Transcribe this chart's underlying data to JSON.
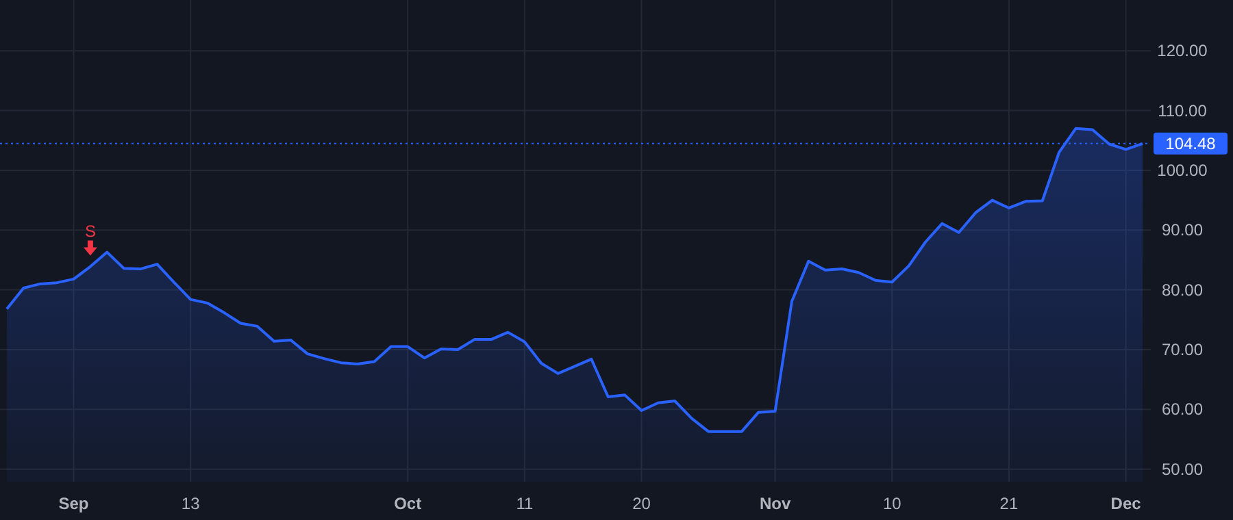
{
  "chart_data": {
    "type": "area",
    "categories": [
      null,
      null,
      null,
      null,
      "Sep",
      null,
      null,
      null,
      null,
      null,
      null,
      "13",
      null,
      null,
      null,
      null,
      null,
      null,
      null,
      null,
      null,
      null,
      null,
      null,
      "Oct",
      null,
      null,
      null,
      null,
      null,
      null,
      "11",
      null,
      null,
      null,
      null,
      null,
      null,
      "20",
      null,
      null,
      null,
      null,
      null,
      null,
      null,
      "Nov",
      null,
      null,
      null,
      null,
      null,
      null,
      "10",
      null,
      null,
      null,
      null,
      null,
      null,
      "21",
      null,
      null,
      null,
      null,
      null,
      null,
      "Dec",
      null
    ],
    "series": [
      {
        "color": "#2962ff",
        "values": [
          76.8,
          80.3,
          81.0,
          81.2,
          81.8,
          83.9,
          86.3,
          83.6,
          83.5,
          84.3,
          81.3,
          78.4,
          77.8,
          76.2,
          74.4,
          73.9,
          71.4,
          71.6,
          69.3,
          68.5,
          67.8,
          67.6,
          68.0,
          70.5,
          70.5,
          68.6,
          70.1,
          70.0,
          71.7,
          71.7,
          72.9,
          71.3,
          67.7,
          66.0,
          67.2,
          68.4,
          62.1,
          62.4,
          59.8,
          61.1,
          61.4,
          58.5,
          56.3,
          56.3,
          56.3,
          59.5,
          59.7,
          78.1,
          84.8,
          83.3,
          83.5,
          82.9,
          81.6,
          81.3,
          84.0,
          88.0,
          91.1,
          89.6,
          92.9,
          95.0,
          93.7,
          94.8,
          94.9,
          103.0,
          107.0,
          106.8,
          104.4,
          103.5,
          104.48
        ]
      }
    ],
    "ylim": [
      47.9,
      128.5
    ],
    "yticks": [
      {
        "value": 50,
        "label": "50.00"
      },
      {
        "value": 60,
        "label": "60.00"
      },
      {
        "value": 70,
        "label": "70.00"
      },
      {
        "value": 80,
        "label": "80.00"
      },
      {
        "value": 90,
        "label": "90.00"
      },
      {
        "value": 100,
        "label": "100.00"
      },
      {
        "value": 110,
        "label": "110.00"
      },
      {
        "value": 120,
        "label": "120.00"
      }
    ],
    "ref_lines": [
      {
        "axis": "y",
        "value": 104.48,
        "label": "104.48",
        "color": "#2962ff",
        "line_style": "dotted"
      }
    ],
    "annotations": [
      {
        "text": "S",
        "y": 83.9
      }
    ],
    "grid": true,
    "marker": "none",
    "line_style": "solid"
  }
}
